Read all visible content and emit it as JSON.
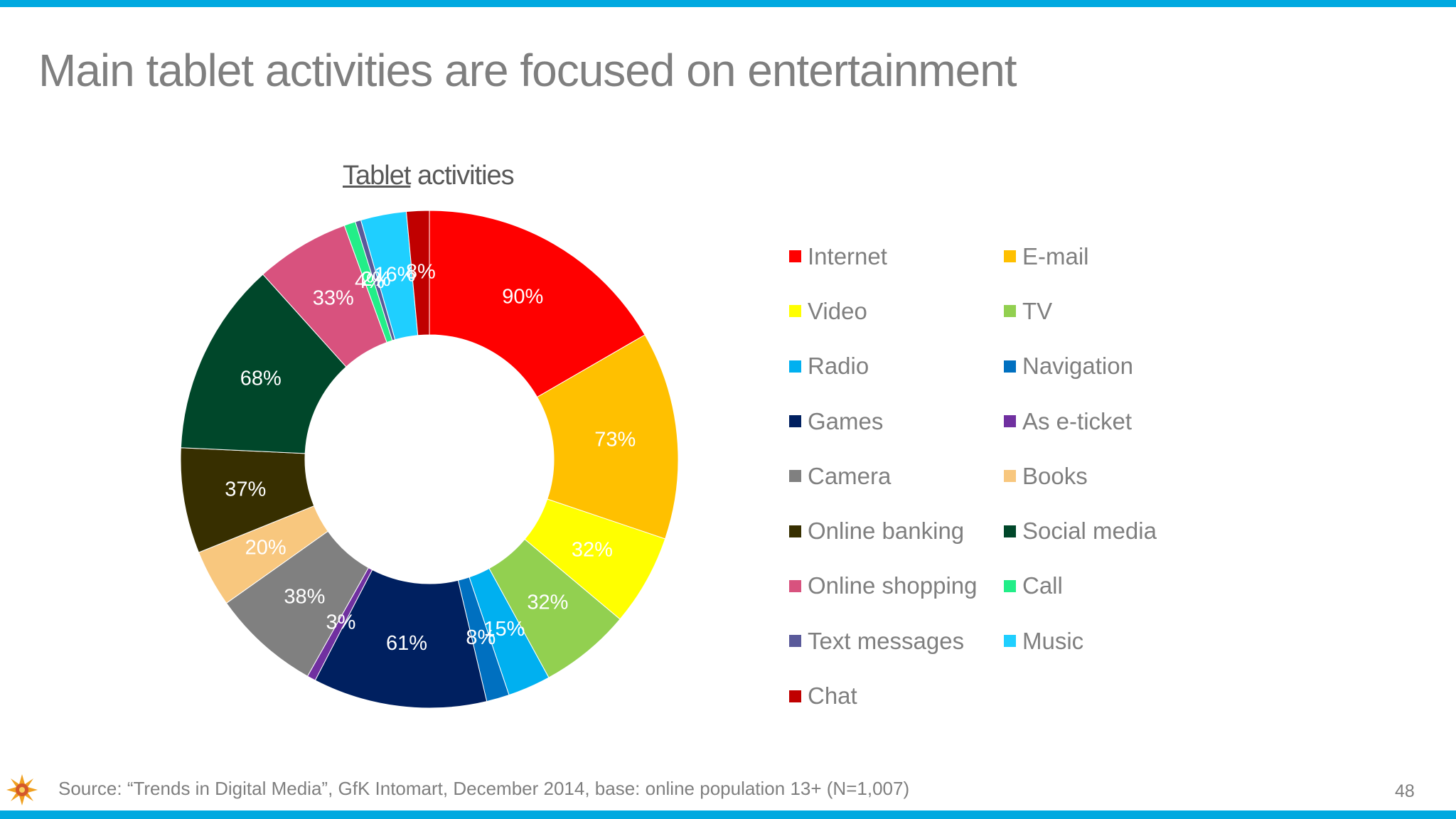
{
  "slide": {
    "title": "Main tablet activities are focused on entertainment",
    "source": "Source: “Trends in Digital Media”, GfK Intomart, December 2014, base: online population 13+ (N=1,007)",
    "page_number": "48",
    "accent_color": "#00a9e0"
  },
  "chart_data": {
    "type": "pie",
    "subtype": "donut",
    "title_underlined": "Tablet",
    "title_rest": " activities",
    "legend_position": "right",
    "unit": "%",
    "series": [
      {
        "name": "Internet",
        "value": 90,
        "label": "90%",
        "color": "#ff0000"
      },
      {
        "name": "E-mail",
        "value": 73,
        "label": "73%",
        "color": "#ffc000"
      },
      {
        "name": "Video",
        "value": 32,
        "label": "32%",
        "color": "#ffff00"
      },
      {
        "name": "TV",
        "value": 32,
        "label": "32%",
        "color": "#92d050"
      },
      {
        "name": "Radio",
        "value": 15,
        "label": "15%",
        "color": "#00b0f0"
      },
      {
        "name": "Navigation",
        "value": 8,
        "label": "8%",
        "color": "#0070c0"
      },
      {
        "name": "Games",
        "value": 61,
        "label": "61%",
        "color": "#002060"
      },
      {
        "name": "As e-ticket",
        "value": 3,
        "label": "3%",
        "color": "#7030a0"
      },
      {
        "name": "Camera",
        "value": 38,
        "label": "38%",
        "color": "#808080"
      },
      {
        "name": "Books",
        "value": 20,
        "label": "20%",
        "color": "#f8c77e"
      },
      {
        "name": "Online banking",
        "value": 37,
        "label": "37%",
        "color": "#372f00"
      },
      {
        "name": "Social media",
        "value": 68,
        "label": "68%",
        "color": "#00472a"
      },
      {
        "name": "Online shopping",
        "value": 33,
        "label": "33%",
        "color": "#d8527e"
      },
      {
        "name": "Call",
        "value": 4,
        "label": "4%",
        "color": "#22ee88"
      },
      {
        "name": "Text messages",
        "value": 2,
        "label": "2%",
        "color": "#5a5a9a"
      },
      {
        "name": "Music",
        "value": 16,
        "label": "16%",
        "color": "#1fcfff"
      },
      {
        "name": "Chat",
        "value": 8,
        "label": "8%",
        "color": "#c00000"
      }
    ]
  }
}
